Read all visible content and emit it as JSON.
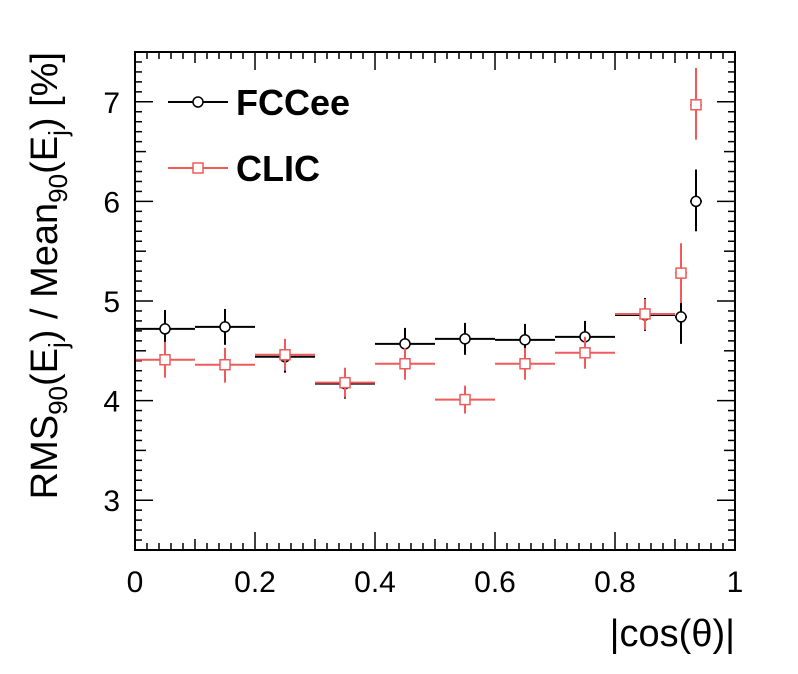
{
  "chart_data": {
    "type": "scatter",
    "title": "",
    "xlabel": "|cos(θ)|",
    "ylabel": {
      "parts": [
        {
          "t": "RMS",
          "sub": false
        },
        {
          "t": "90",
          "sub": true
        },
        {
          "t": "(E",
          "sub": false
        },
        {
          "t": "j",
          "sub": true
        },
        {
          "t": ") / Mean",
          "sub": false
        },
        {
          "t": "90",
          "sub": true
        },
        {
          "t": "(E",
          "sub": false
        },
        {
          "t": "j",
          "sub": true
        },
        {
          "t": ") [%]",
          "sub": false
        }
      ]
    },
    "xlim": [
      0,
      1
    ],
    "ylim": [
      2.5,
      7.5
    ],
    "xticks": [
      0,
      0.2,
      0.4,
      0.6,
      0.8,
      1
    ],
    "xtick_labels": [
      "0",
      "0.2",
      "0.4",
      "0.6",
      "0.8",
      "1"
    ],
    "yticks": [
      3,
      4,
      5,
      6,
      7
    ],
    "ytick_labels": [
      "3",
      "4",
      "5",
      "6",
      "7"
    ],
    "grid": false,
    "legend_position": "top-left",
    "series": [
      {
        "name": "FCCee",
        "color": "#000000",
        "marker": "circle",
        "points": [
          {
            "x": 0.05,
            "xlo": 0.0,
            "xhi": 0.1,
            "y": 4.72,
            "ylo": 4.54,
            "yhi": 4.91
          },
          {
            "x": 0.15,
            "xlo": 0.1,
            "xhi": 0.2,
            "y": 4.74,
            "ylo": 4.56,
            "yhi": 4.92
          },
          {
            "x": 0.25,
            "xlo": 0.2,
            "xhi": 0.3,
            "y": 4.44,
            "ylo": 4.28,
            "yhi": 4.59
          },
          {
            "x": 0.35,
            "xlo": 0.3,
            "xhi": 0.4,
            "y": 4.17,
            "ylo": 4.02,
            "yhi": 4.32
          },
          {
            "x": 0.45,
            "xlo": 0.4,
            "xhi": 0.5,
            "y": 4.57,
            "ylo": 4.41,
            "yhi": 4.73
          },
          {
            "x": 0.55,
            "xlo": 0.5,
            "xhi": 0.6,
            "y": 4.62,
            "ylo": 4.46,
            "yhi": 4.78
          },
          {
            "x": 0.65,
            "xlo": 0.6,
            "xhi": 0.7,
            "y": 4.61,
            "ylo": 4.45,
            "yhi": 4.77
          },
          {
            "x": 0.75,
            "xlo": 0.7,
            "xhi": 0.8,
            "y": 4.64,
            "ylo": 4.48,
            "yhi": 4.8
          },
          {
            "x": 0.85,
            "xlo": 0.8,
            "xhi": 0.9,
            "y": 4.86,
            "ylo": 4.7,
            "yhi": 5.03
          },
          {
            "x": 0.91,
            "xlo": 0.9,
            "xhi": 0.92,
            "y": 4.84,
            "ylo": 4.57,
            "yhi": 5.06
          },
          {
            "x": 0.935,
            "xlo": 0.925,
            "xhi": 0.945,
            "y": 6.0,
            "ylo": 5.7,
            "yhi": 6.32
          }
        ]
      },
      {
        "name": "CLIC",
        "color": "#f05a5a",
        "marker": "square",
        "points": [
          {
            "x": 0.05,
            "xlo": 0.0,
            "xhi": 0.1,
            "y": 4.41,
            "ylo": 4.23,
            "yhi": 4.59
          },
          {
            "x": 0.15,
            "xlo": 0.1,
            "xhi": 0.2,
            "y": 4.36,
            "ylo": 4.18,
            "yhi": 4.53
          },
          {
            "x": 0.25,
            "xlo": 0.2,
            "xhi": 0.3,
            "y": 4.46,
            "ylo": 4.3,
            "yhi": 4.62
          },
          {
            "x": 0.35,
            "xlo": 0.3,
            "xhi": 0.4,
            "y": 4.18,
            "ylo": 4.03,
            "yhi": 4.33
          },
          {
            "x": 0.45,
            "xlo": 0.4,
            "xhi": 0.5,
            "y": 4.37,
            "ylo": 4.21,
            "yhi": 4.53
          },
          {
            "x": 0.55,
            "xlo": 0.5,
            "xhi": 0.6,
            "y": 4.01,
            "ylo": 3.87,
            "yhi": 4.15
          },
          {
            "x": 0.65,
            "xlo": 0.6,
            "xhi": 0.7,
            "y": 4.37,
            "ylo": 4.21,
            "yhi": 4.53
          },
          {
            "x": 0.75,
            "xlo": 0.7,
            "xhi": 0.8,
            "y": 4.48,
            "ylo": 4.32,
            "yhi": 4.64
          },
          {
            "x": 0.85,
            "xlo": 0.8,
            "xhi": 0.9,
            "y": 4.87,
            "ylo": 4.71,
            "yhi": 5.02
          },
          {
            "x": 0.91,
            "xlo": 0.9,
            "xhi": 0.92,
            "y": 5.28,
            "ylo": 4.98,
            "yhi": 5.58
          },
          {
            "x": 0.935,
            "xlo": 0.925,
            "xhi": 0.945,
            "y": 6.97,
            "ylo": 6.62,
            "yhi": 7.34
          }
        ]
      }
    ]
  }
}
